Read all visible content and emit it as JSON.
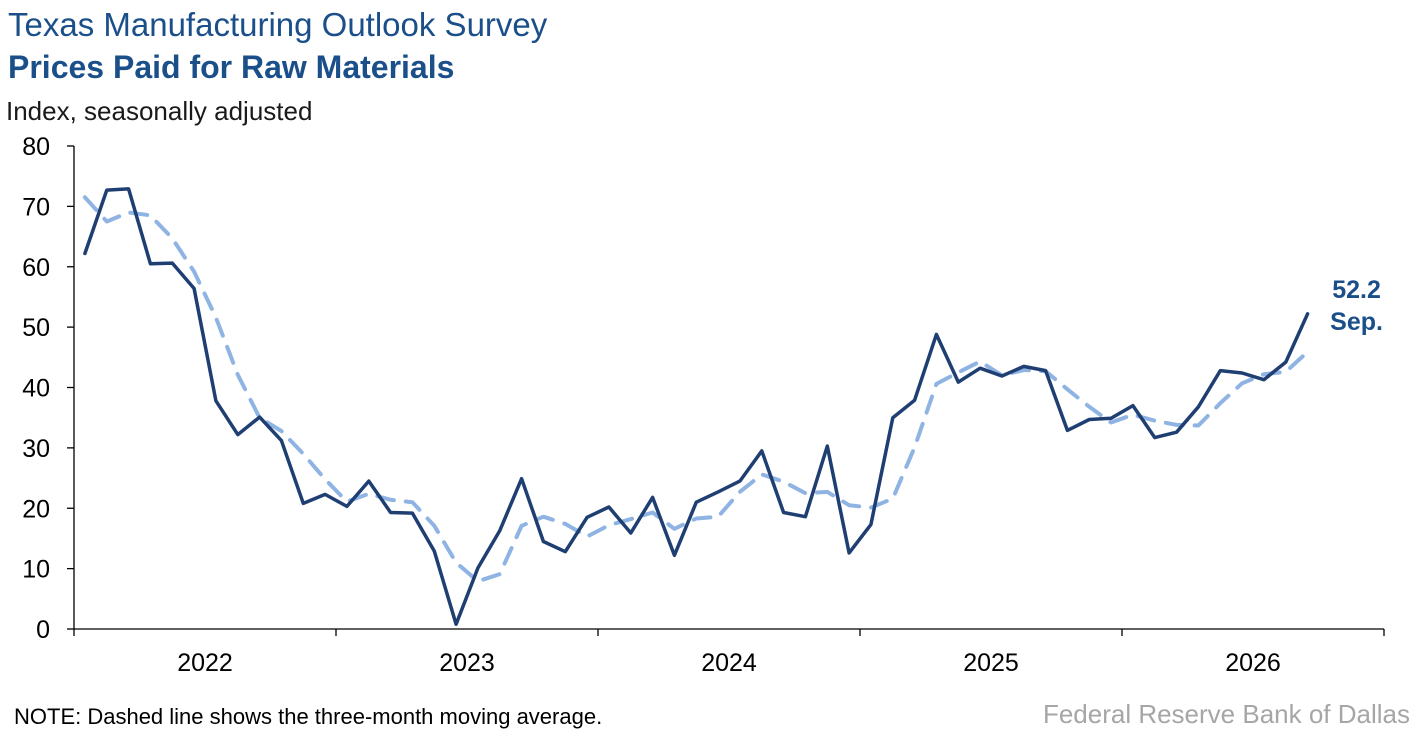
{
  "header": {
    "title": "Texas Manufacturing Outlook Survey",
    "subtitle": "Prices Paid for Raw Materials",
    "unit_label": "Index, seasonally adjusted"
  },
  "footer": {
    "note": "NOTE: Dashed line shows the three-month moving average.",
    "source": "Federal Reserve Bank of Dallas"
  },
  "colors": {
    "index_line": "#1f3f73",
    "moving_average_line": "#8fb4e3",
    "axis": "#000000",
    "callout": "#1a4f8a"
  },
  "chart_data": {
    "type": "line",
    "x_start": "2022-01",
    "x_frequency": "monthly",
    "ylim": [
      0,
      80
    ],
    "yticks": [
      0,
      10,
      20,
      30,
      40,
      50,
      60,
      70,
      80
    ],
    "xtick_labels": [
      "2022",
      "2023",
      "2024",
      "2025",
      "2026"
    ],
    "grid": false,
    "series": [
      {
        "style": "solid",
        "values": [
          62.2,
          72.7,
          72.9,
          60.5,
          60.6,
          56.4,
          37.8,
          32.2,
          35.1,
          31.2,
          20.8,
          22.3,
          20.3,
          24.5,
          19.3,
          19.2,
          12.9,
          0.8,
          10.1,
          16.3,
          24.9,
          14.5,
          12.8,
          18.5,
          20.2,
          15.9,
          21.8,
          12.2,
          21.0,
          22.7,
          24.5,
          29.5,
          19.3,
          18.6,
          30.3,
          12.6,
          17.3,
          35.0,
          37.9,
          48.8,
          40.9,
          43.2,
          41.9,
          43.5,
          42.8,
          32.9,
          34.7,
          34.9,
          37.0,
          31.7,
          32.6,
          36.8,
          42.8,
          42.4,
          41.3,
          44.2,
          52.2
        ]
      },
      {
        "style": "dashed",
        "values": [
          71.5,
          67.5,
          69.0,
          68.5,
          64.7,
          59.2,
          51.6,
          42.1,
          35.0,
          32.8,
          29.0,
          24.8,
          21.1,
          22.4,
          21.4,
          21.0,
          17.1,
          11.0,
          7.9,
          9.1,
          17.1,
          18.6,
          17.4,
          15.3,
          17.2,
          18.2,
          19.3,
          16.6,
          18.3,
          18.6,
          22.7,
          25.6,
          24.4,
          22.5,
          22.7,
          20.5,
          20.1,
          21.6,
          30.1,
          40.6,
          42.5,
          44.3,
          42.0,
          42.9,
          42.7,
          39.7,
          36.8,
          34.2,
          35.5,
          34.5,
          33.8,
          33.7,
          37.4,
          40.7,
          42.2,
          42.6,
          45.9
        ]
      }
    ],
    "annotations": [
      {
        "value_label": "52.2",
        "period_label": "Sep."
      }
    ]
  }
}
